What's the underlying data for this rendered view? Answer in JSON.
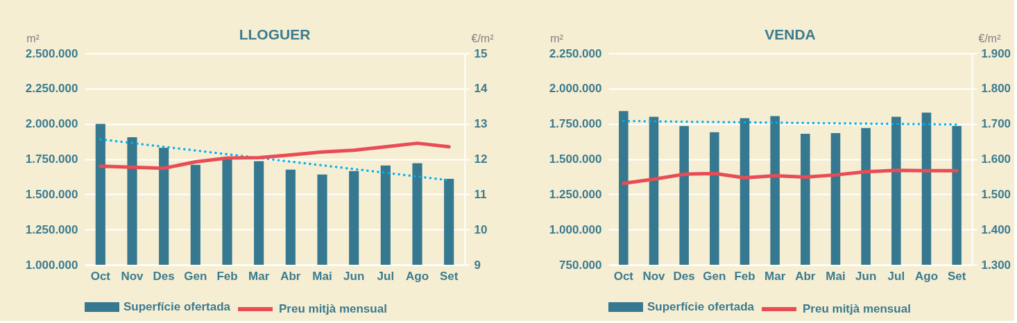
{
  "chart_data": [
    {
      "type": "bar",
      "title": "LLOGUER",
      "ylabel": "m²",
      "y2label": "€/m²",
      "categories": [
        "Oct",
        "Nov",
        "Des",
        "Gen",
        "Feb",
        "Mar",
        "Abr",
        "Mai",
        "Jun",
        "Jul",
        "Ago",
        "Set"
      ],
      "series": [
        {
          "name": "Superfície ofertada",
          "color": "#35788f",
          "values": [
            2000000,
            1905000,
            1830000,
            1710000,
            1750000,
            1735000,
            1675000,
            1640000,
            1665000,
            1705000,
            1720000,
            1610000
          ]
        },
        {
          "name": "Preu mitjà mensual",
          "type": "line",
          "axis": "y2",
          "color": "#e84c55",
          "values": [
            11.8,
            11.77,
            11.74,
            11.92,
            12.03,
            12.04,
            12.12,
            12.2,
            12.25,
            12.35,
            12.45,
            12.35
          ]
        },
        {
          "type": "line",
          "color": "#00b0f0",
          "line_style": "dotted",
          "x": [
            "Oct",
            "Set"
          ],
          "values": [
            1890000,
            1600000
          ]
        }
      ],
      "ylim": [
        1000000,
        2500000
      ],
      "yticks": [
        {
          "value": 1000000,
          "label": "1.000.000"
        },
        {
          "value": 1250000,
          "label": "1.250.000"
        },
        {
          "value": 1500000,
          "label": "1.500.000"
        },
        {
          "value": 1750000,
          "label": "1.750.000"
        },
        {
          "value": 2000000,
          "label": "2.000.000"
        },
        {
          "value": 2250000,
          "label": "2.250.000"
        },
        {
          "value": 2500000,
          "label": "2.500.000"
        }
      ],
      "y2lim": [
        9,
        15
      ],
      "y2ticks": [
        9,
        10,
        11,
        12,
        13,
        14,
        15
      ],
      "grid": "y",
      "legend": "bottom"
    },
    {
      "type": "bar",
      "title": "VENDA",
      "ylabel": "m²",
      "y2label": "€/m²",
      "categories": [
        "Oct",
        "Nov",
        "Des",
        "Gen",
        "Feb",
        "Mar",
        "Abr",
        "Mai",
        "Jun",
        "Jul",
        "Ago",
        "Set"
      ],
      "series": [
        {
          "name": "Superfície ofertada",
          "color": "#35788f",
          "values": [
            1840000,
            1800000,
            1735000,
            1690000,
            1790000,
            1805000,
            1680000,
            1685000,
            1720000,
            1800000,
            1830000,
            1735000
          ]
        },
        {
          "name": "Preu mitjà mensual",
          "type": "line",
          "axis": "y2",
          "color": "#e84c55",
          "values": [
            1531,
            1543,
            1557,
            1559,
            1547,
            1553,
            1549,
            1555,
            1564,
            1568,
            1567,
            1567
          ]
        },
        {
          "type": "line",
          "color": "#00b0f0",
          "line_style": "dotted",
          "x": [
            "Oct",
            "Set"
          ],
          "values": [
            1770000,
            1745000
          ]
        }
      ],
      "ylim": [
        750000,
        2250000
      ],
      "yticks": [
        {
          "value": 750000,
          "label": "750.000"
        },
        {
          "value": 1000000,
          "label": "1.000.000"
        },
        {
          "value": 1250000,
          "label": "1.250.000"
        },
        {
          "value": 1500000,
          "label": "1.500.000"
        },
        {
          "value": 1750000,
          "label": "1.750.000"
        },
        {
          "value": 2000000,
          "label": "2.000.000"
        },
        {
          "value": 2250000,
          "label": "2.250.000"
        }
      ],
      "y2lim": [
        1300,
        1900
      ],
      "y2ticks": [
        {
          "value": 1300,
          "label": "1.300"
        },
        {
          "value": 1400,
          "label": "1.400"
        },
        {
          "value": 1500,
          "label": "1.500"
        },
        {
          "value": 1600,
          "label": "1.600"
        },
        {
          "value": 1700,
          "label": "1.700"
        },
        {
          "value": 1800,
          "label": "1.800"
        },
        {
          "value": 1900,
          "label": "1.900"
        }
      ],
      "grid": "y",
      "legend": "bottom"
    }
  ]
}
